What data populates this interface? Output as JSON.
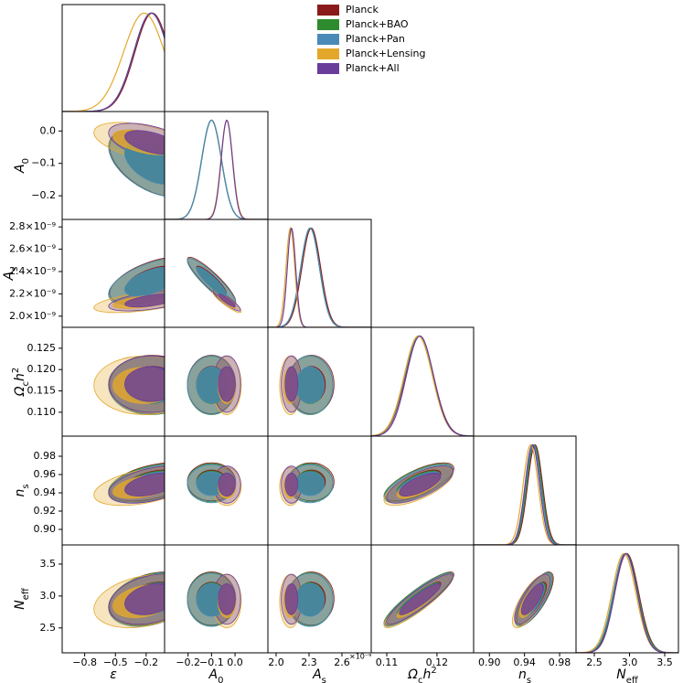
{
  "chart_data": {
    "type": "triangle",
    "parameters": [
      {
        "label": [
          {
            "text": "ε"
          }
        ],
        "xlim": [
          -1.02,
          -0.02
        ],
        "xticks": [
          {
            "value": -0.8,
            "label": "−0.8"
          },
          {
            "value": -0.5,
            "label": "−0.5"
          },
          {
            "value": -0.2,
            "label": "−0.2"
          }
        ]
      },
      {
        "label": [
          {
            "text": "A"
          },
          {
            "text": "0",
            "sub": true
          }
        ],
        "xlim": [
          -0.3,
          0.14
        ],
        "xticks": [
          {
            "value": -0.2,
            "label": "−0.2"
          },
          {
            "value": -0.1,
            "label": "−0.1"
          },
          {
            "value": 0,
            "label": "0.0"
          }
        ],
        "ylim": [
          -0.273,
          0.06
        ],
        "yticks": [
          {
            "value": -0.2,
            "label": "−0.2"
          },
          {
            "value": -0.1,
            "label": "−0.1"
          },
          {
            "value": 0,
            "label": "0.0"
          }
        ]
      },
      {
        "label": [
          {
            "text": "A"
          },
          {
            "text": "s",
            "sub": true
          }
        ],
        "xlim": [
          1.925,
          2.867
        ],
        "xticks": [
          {
            "value": 2,
            "label": "2.0"
          },
          {
            "value": 2.3,
            "label": "2.3"
          },
          {
            "value": 2.6,
            "label": "2.6"
          }
        ],
        "offset_label": "×10⁻⁹",
        "ylim": [
          1.9,
          2.867
        ],
        "yticks": [
          {
            "value": 2,
            "label": "2.0×10⁻⁹"
          },
          {
            "value": 2.2,
            "label": "2.2×10⁻⁹"
          },
          {
            "value": 2.4,
            "label": "2.4×10⁻⁹"
          },
          {
            "value": 2.6,
            "label": "2.6×10⁻⁹"
          },
          {
            "value": 2.8,
            "label": "2.8×10⁻⁹"
          }
        ]
      },
      {
        "label": [
          {
            "text": "Ω"
          },
          {
            "text": "c",
            "sub": true
          },
          {
            "text": "h"
          },
          {
            "text": "2",
            "sup": true
          }
        ],
        "xlim": [
          0.1069,
          0.1273
        ],
        "xticks": [
          0.11,
          0.12
        ],
        "ylim": [
          0.1044,
          0.1299
        ],
        "yticks": [
          {
            "value": 0.11,
            "label": "0.110"
          },
          0.115,
          {
            "value": 0.12,
            "label": "0.120"
          },
          0.125
        ]
      },
      {
        "label": [
          {
            "text": "n"
          },
          {
            "text": "s",
            "sub": true
          }
        ],
        "xlim": [
          0.882,
          0.9987
        ],
        "xticks": [
          {
            "value": 0.9,
            "label": "0.90"
          },
          0.94,
          0.98
        ],
        "ylim": [
          0.883,
          1.002
        ],
        "yticks": [
          {
            "value": 0.9,
            "label": "0.90"
          },
          0.92,
          0.94,
          0.96,
          0.98
        ]
      },
      {
        "label": [
          {
            "text": "N"
          },
          {
            "text": "eff",
            "sub": true
          }
        ],
        "xlim": [
          2.24,
          3.695
        ],
        "xticks": [
          2.5,
          {
            "value": 3,
            "label": "3.0"
          },
          3.5
        ],
        "ylim": [
          2.11,
          3.8
        ],
        "yticks": [
          2.5,
          {
            "value": 3,
            "label": "3.0"
          },
          3.5
        ]
      }
    ],
    "series": [
      {
        "name": "Planck",
        "color": "#8b1a1a",
        "means": [
          -0.14,
          -0.1,
          2.32,
          0.1165,
          0.952,
          2.96
        ],
        "sds": [
          0.17,
          0.042,
          0.085,
          0.0028,
          0.0085,
          0.17
        ]
      },
      {
        "name": "Planck+BAO",
        "color": "#2e8b2e",
        "means": [
          -0.15,
          -0.1,
          2.31,
          0.1163,
          0.951,
          2.95
        ],
        "sds": [
          0.17,
          0.042,
          0.085,
          0.0028,
          0.0085,
          0.17
        ]
      },
      {
        "name": "Planck+Pan",
        "color": "#4a8ab8",
        "means": [
          -0.15,
          -0.1,
          2.31,
          0.1164,
          0.95,
          2.94
        ],
        "sds": [
          0.17,
          0.042,
          0.085,
          0.0028,
          0.0085,
          0.17
        ]
      },
      {
        "name": "Planck+Lensing",
        "color": "#e3a82b",
        "means": [
          -0.22,
          -0.035,
          2.13,
          0.1163,
          0.947,
          2.92
        ],
        "sds": [
          0.2,
          0.025,
          0.04,
          0.0028,
          0.0085,
          0.17
        ]
      },
      {
        "name": "Planck+All",
        "color": "#6a3d9a",
        "means": [
          -0.15,
          -0.035,
          2.14,
          0.1166,
          0.949,
          2.95
        ],
        "sds": [
          0.17,
          0.024,
          0.038,
          0.0027,
          0.0083,
          0.16
        ]
      }
    ],
    "correlations": [
      [
        1,
        -0.5,
        0.55,
        0,
        0.45,
        0.3
      ],
      [
        -0.5,
        1,
        -0.9,
        0,
        0,
        0
      ],
      [
        0.55,
        -0.9,
        1,
        0,
        0,
        0
      ],
      [
        0,
        0,
        0,
        1,
        0.7,
        0.9
      ],
      [
        0.45,
        0,
        0,
        0.7,
        1,
        0.75
      ],
      [
        0.3,
        0,
        0,
        0.9,
        0.75,
        1
      ]
    ]
  }
}
